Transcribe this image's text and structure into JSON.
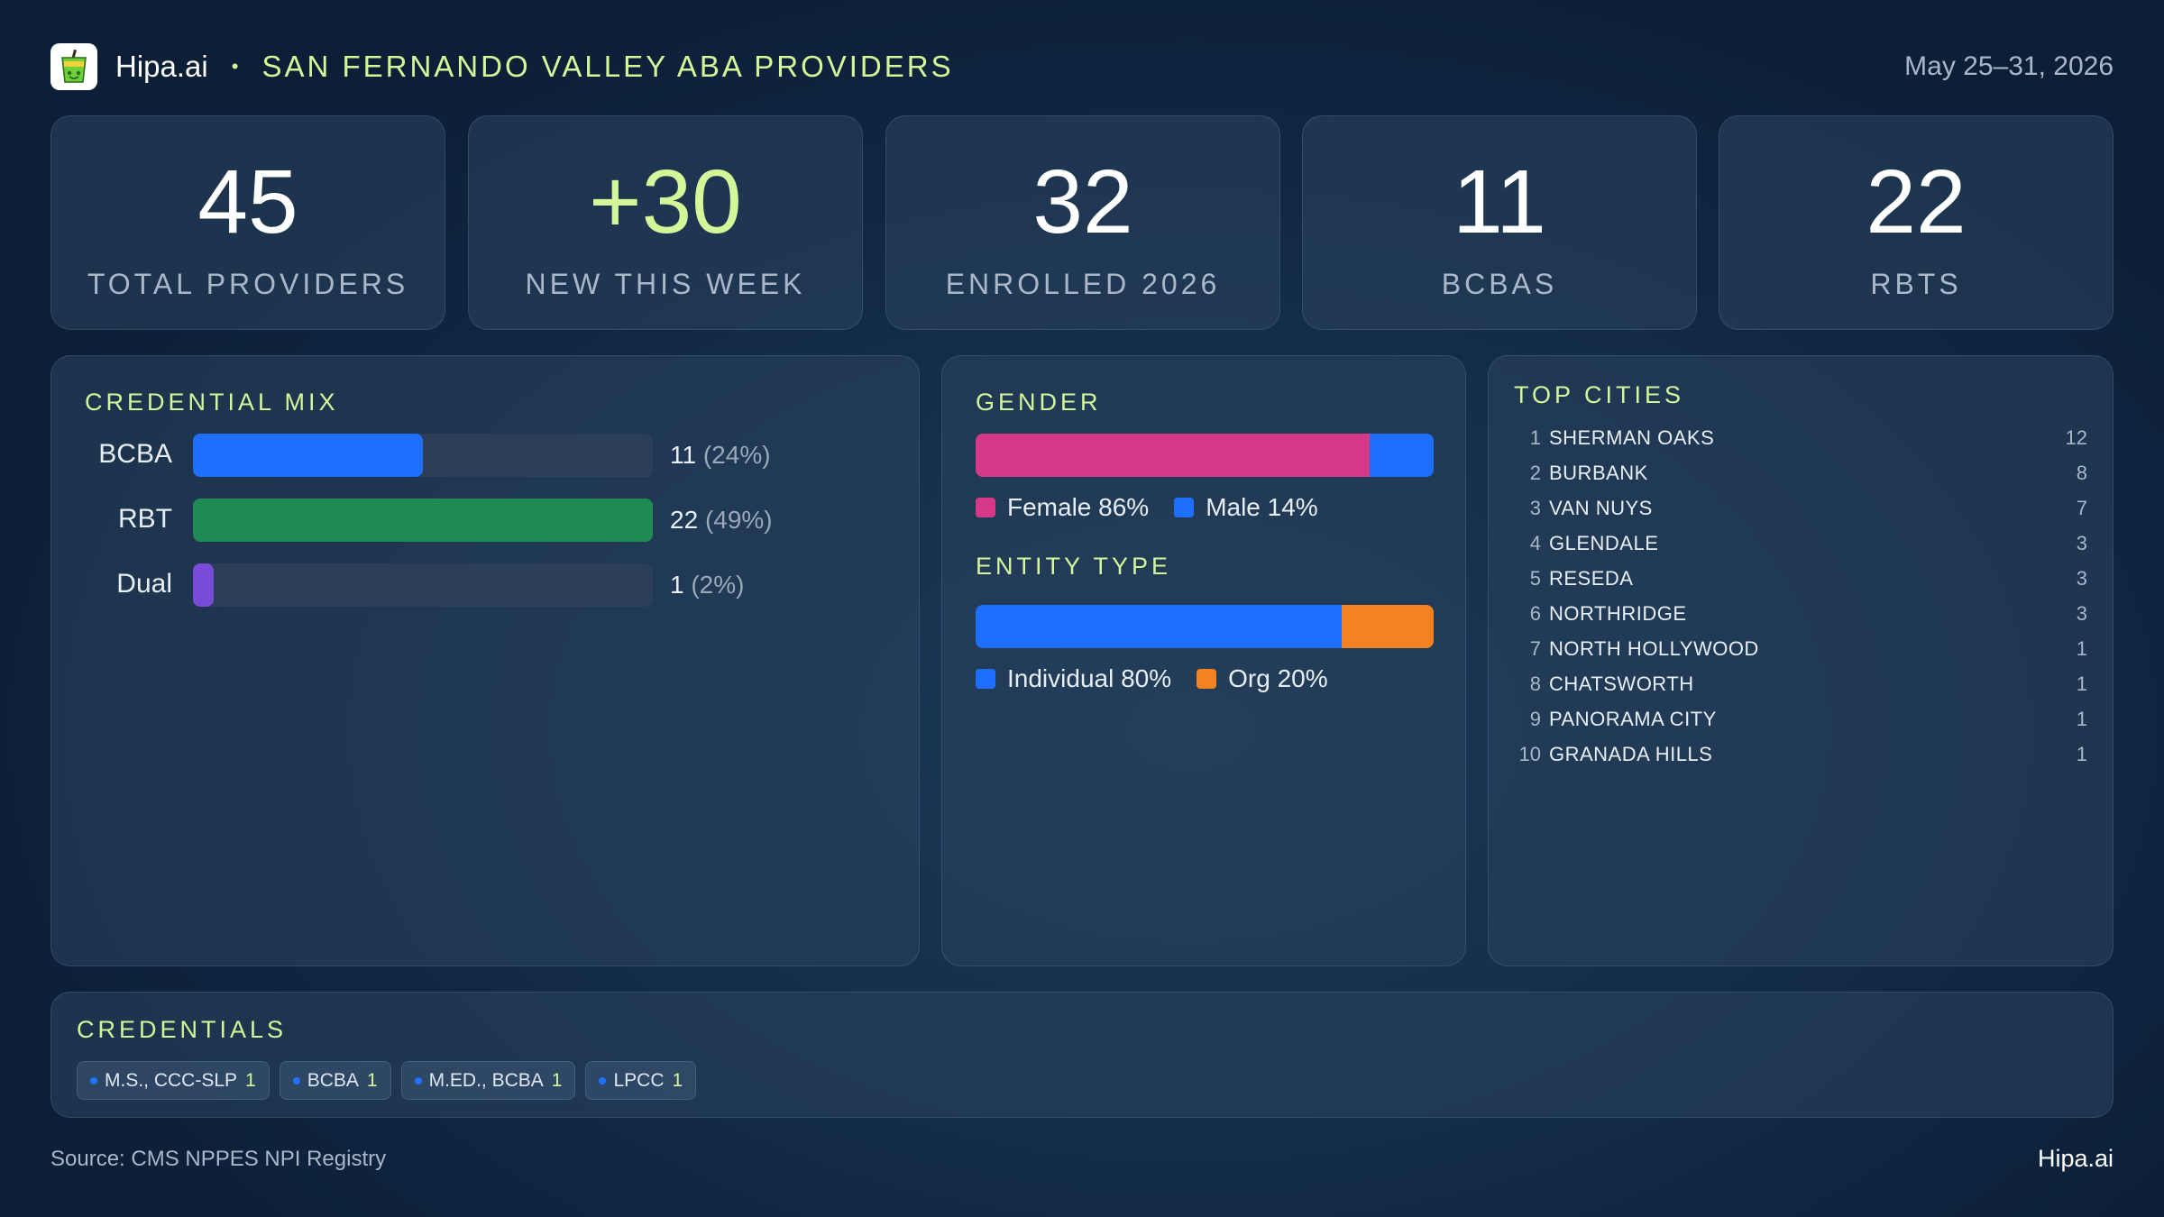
{
  "header": {
    "brand": "Hipa.ai",
    "separator": "•",
    "title": "SAN FERNANDO VALLEY ABA PROVIDERS",
    "date_range": "May 25–31, 2026",
    "logo_icon": "drink-cup-icon"
  },
  "stats": [
    {
      "value": "45",
      "label": "TOTAL PROVIDERS"
    },
    {
      "value": "+30",
      "label": "NEW THIS WEEK"
    },
    {
      "value": "32",
      "label": "ENROLLED 2026"
    },
    {
      "value": "11",
      "label": "BCBAS"
    },
    {
      "value": "22",
      "label": "RBTS"
    }
  ],
  "credential_mix": {
    "title": "CREDENTIAL MIX",
    "rows": [
      {
        "label": "BCBA",
        "count": "11",
        "pct": "(24%)",
        "share": 0.5,
        "color": "#1f6fff"
      },
      {
        "label": "RBT",
        "count": "22",
        "pct": "(49%)",
        "share": 1.0,
        "color": "#1f8a52"
      },
      {
        "label": "Dual",
        "count": "1",
        "pct": "(2%)",
        "share": 0.045,
        "color": "#7a4ad9"
      }
    ]
  },
  "gender": {
    "title": "GENDER",
    "segments": [
      {
        "label": "Female 86%",
        "share": 0.86,
        "color": "#d6398a"
      },
      {
        "label": "Male 14%",
        "share": 0.14,
        "color": "#1f6fff"
      }
    ]
  },
  "entity_type": {
    "title": "ENTITY TYPE",
    "segments": [
      {
        "label": "Individual 80%",
        "share": 0.8,
        "color": "#1f6fff"
      },
      {
        "label": "Org 20%",
        "share": 0.2,
        "color": "#f58220"
      }
    ]
  },
  "top_cities": {
    "title": "TOP CITIES",
    "rows": [
      {
        "rank": "1",
        "name": "SHERMAN OAKS",
        "count": "12"
      },
      {
        "rank": "2",
        "name": "BURBANK",
        "count": "8"
      },
      {
        "rank": "3",
        "name": "VAN NUYS",
        "count": "7"
      },
      {
        "rank": "4",
        "name": "GLENDALE",
        "count": "3"
      },
      {
        "rank": "5",
        "name": "RESEDA",
        "count": "3"
      },
      {
        "rank": "6",
        "name": "NORTHRIDGE",
        "count": "3"
      },
      {
        "rank": "7",
        "name": "NORTH HOLLYWOOD",
        "count": "1"
      },
      {
        "rank": "8",
        "name": "CHATSWORTH",
        "count": "1"
      },
      {
        "rank": "9",
        "name": "PANORAMA CITY",
        "count": "1"
      },
      {
        "rank": "10",
        "name": "GRANADA HILLS",
        "count": "1"
      }
    ]
  },
  "credentials": {
    "title": "CREDENTIALS",
    "chips": [
      {
        "label": "M.S., CCC-SLP",
        "count": "1"
      },
      {
        "label": "BCBA",
        "count": "1"
      },
      {
        "label": "M.ED., BCBA",
        "count": "1"
      },
      {
        "label": "LPCC",
        "count": "1"
      }
    ]
  },
  "footer": {
    "source": "Source: CMS NPPES NPI Registry",
    "brand": "Hipa.ai"
  }
}
